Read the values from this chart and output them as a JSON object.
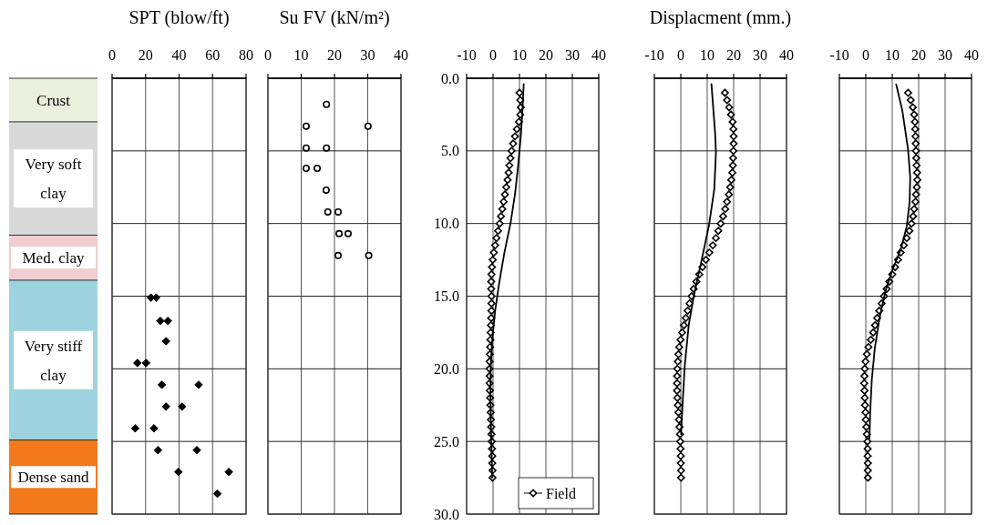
{
  "chart_data": [
    {
      "type": "bar",
      "stacked": true,
      "categories": [
        null
      ],
      "ylim": [
        30,
        0
      ],
      "tick_labels": false,
      "series": [
        {
          "name": "Crust",
          "color": "#ebf0de",
          "values": [
            3.0
          ]
        },
        {
          "name": "Very soft clay",
          "color": "#d9d9d9",
          "values": [
            7.8
          ]
        },
        {
          "name": "Med. clay",
          "color": "#efcdd0",
          "values": [
            3.1
          ]
        },
        {
          "name": "Very stiff clay",
          "color": "#9dd3df",
          "values": [
            11.0
          ]
        },
        {
          "name": "Dense sand",
          "color": "#f27a1c",
          "values": [
            5.1
          ]
        }
      ]
    },
    {
      "type": "scatter",
      "title": "SPT (blow/ft)",
      "xlim": [
        0,
        80
      ],
      "xticks": [
        0,
        20,
        40,
        60,
        80
      ],
      "ylim": [
        30,
        0
      ],
      "yticks": [
        0,
        5,
        10,
        15,
        20,
        25,
        30
      ],
      "tick_labels": "x",
      "grid": true,
      "marker": "diamond",
      "series": [
        {
          "color": "#000000",
          "x": [
            23.2,
            26.3,
            28.8,
            33.3,
            32.2,
            15.1,
            20.3,
            29.7,
            51.7,
            32.2,
            41.8,
            13.8,
            25,
            27.4,
            50.6,
            39.6,
            69.7,
            62.9
          ],
          "values": [
            15.1,
            15.1,
            16.7,
            16.7,
            18.1,
            19.6,
            19.6,
            21.1,
            21.1,
            22.6,
            22.6,
            24.1,
            24.1,
            25.6,
            25.6,
            27.1,
            27.1,
            28.6
          ]
        }
      ]
    },
    {
      "type": "scatter",
      "title": "Su FV (kN/m²)",
      "xlim": [
        0,
        40
      ],
      "xticks": [
        0,
        10,
        20,
        30,
        40
      ],
      "ylim": [
        30,
        0
      ],
      "yticks": [
        0,
        5,
        10,
        15,
        20,
        25,
        30
      ],
      "tick_labels": "x",
      "grid": true,
      "marker": "circle",
      "series": [
        {
          "color": "#000000",
          "x": [
            17.6,
            11.5,
            30.1,
            11.5,
            17.6,
            11.5,
            14.8,
            17.5,
            18.0,
            21.1,
            21.4,
            24.1,
            21.1,
            30.3
          ],
          "values": [
            1.8,
            3.3,
            3.3,
            4.8,
            4.8,
            6.2,
            6.2,
            7.7,
            9.2,
            9.2,
            10.7,
            10.7,
            12.2,
            12.2
          ]
        }
      ]
    },
    {
      "type": "scatter",
      "xlim": [
        -10,
        40
      ],
      "xticks": [
        -10,
        0,
        10,
        20,
        30,
        40
      ],
      "ylim": [
        30,
        0
      ],
      "yticks": [
        {
          "value": 0,
          "label": "0.0"
        },
        {
          "value": 5,
          "label": "5.0"
        },
        {
          "value": 10,
          "label": "10.0"
        },
        {
          "value": 15,
          "label": "15.0"
        },
        {
          "value": 20,
          "label": "20.0"
        },
        {
          "value": 25,
          "label": "25.0"
        },
        {
          "value": 30,
          "label": "30.0"
        }
      ],
      "grid": true,
      "legend": "bottom right",
      "series": [
        {
          "type": "scatter",
          "name": "Field",
          "color": "#000000",
          "marker": "diamond",
          "x": [
            10.0,
            10.3,
            10.5,
            10.3,
            9.8,
            9.0,
            8.3,
            7.6,
            7.0,
            6.6,
            6.2,
            5.9,
            5.5,
            5.0,
            4.5,
            4.0,
            3.5,
            3.0,
            2.5,
            1.9,
            1.3,
            0.8,
            0.3,
            -0.1,
            -0.4,
            -0.6,
            -0.7,
            -0.7,
            -0.6,
            -0.6,
            -0.6,
            -0.7,
            -0.8,
            -0.9,
            -1.0,
            -1.1,
            -1.2,
            -1.3,
            -1.3,
            -1.3,
            -1.3,
            -1.2,
            -1.1,
            -1.0,
            -0.9,
            -0.8,
            -0.7,
            -0.6,
            -0.5,
            -0.4,
            -0.3,
            -0.3,
            -0.2,
            -0.2
          ],
          "values": [
            1.0,
            1.5,
            2.0,
            2.5,
            3.0,
            3.5,
            4.0,
            4.5,
            5.0,
            5.5,
            6.0,
            6.5,
            7.0,
            7.5,
            8.0,
            8.5,
            9.0,
            9.5,
            10.0,
            10.5,
            11.0,
            11.5,
            12.0,
            12.5,
            13.0,
            13.5,
            14.0,
            14.5,
            15.0,
            15.5,
            16.0,
            16.5,
            17.0,
            17.5,
            18.0,
            18.5,
            19.0,
            19.5,
            20.0,
            20.5,
            21.0,
            21.5,
            22.0,
            22.5,
            23.0,
            23.5,
            24.0,
            24.5,
            25.0,
            25.5,
            26.0,
            26.5,
            27.0,
            27.5
          ]
        },
        {
          "type": "line",
          "color": "#000000",
          "marker": "none",
          "line_style": "solid",
          "x": [
            11.6,
            11.2,
            10.5,
            9.5,
            8.3,
            6.6,
            4.3,
            2.4,
            0.8,
            -0.3,
            -0.9,
            -1.0,
            -0.8,
            -0.5,
            -0.3
          ],
          "values": [
            0.4,
            2,
            4,
            6,
            8,
            10,
            12,
            14,
            16,
            18,
            20,
            22,
            24,
            26,
            27.5
          ]
        }
      ]
    },
    {
      "type": "scatter",
      "title": "Displacment (mm.)",
      "xlim": [
        -10,
        40
      ],
      "xticks": [
        -10,
        0,
        10,
        20,
        30,
        40
      ],
      "ylim": [
        30,
        0
      ],
      "yticks": [
        0,
        5,
        10,
        15,
        20,
        25,
        30
      ],
      "tick_labels": "x",
      "grid": true,
      "series": [
        {
          "type": "scatter",
          "color": "#000000",
          "marker": "diamond",
          "x": [
            16.7,
            17.5,
            18.3,
            19.0,
            19.6,
            19.9,
            20.0,
            20.0,
            19.9,
            19.8,
            19.7,
            19.5,
            19.1,
            18.7,
            18.2,
            17.5,
            16.8,
            16.0,
            15.1,
            14.2,
            13.3,
            12.1,
            10.8,
            9.5,
            8.2,
            7.0,
            5.9,
            4.9,
            4.1,
            3.3,
            2.6,
            1.9,
            1.2,
            0.5,
            -0.1,
            -0.6,
            -0.9,
            -1.1,
            -1.3,
            -1.4,
            -1.4,
            -1.4,
            -1.3,
            -1.1,
            -0.9,
            -0.7,
            -0.5,
            -0.3,
            -0.2,
            -0.1,
            0.0,
            0.0,
            0.1,
            0.1
          ],
          "values": [
            1.0,
            1.5,
            2.0,
            2.5,
            3.0,
            3.5,
            4.0,
            4.5,
            5.0,
            5.5,
            6.0,
            6.5,
            7.0,
            7.5,
            8.0,
            8.5,
            9.0,
            9.5,
            10.0,
            10.5,
            11.0,
            11.5,
            12.0,
            12.5,
            13.0,
            13.5,
            14.0,
            14.5,
            15.0,
            15.5,
            16.0,
            16.5,
            17.0,
            17.5,
            18.0,
            18.5,
            19.0,
            19.5,
            20.0,
            20.5,
            21.0,
            21.5,
            22.0,
            22.5,
            23.0,
            23.5,
            24.0,
            24.5,
            25.0,
            25.5,
            26.0,
            26.5,
            27.0,
            27.5
          ]
        },
        {
          "type": "line",
          "color": "#000000",
          "marker": "none",
          "line_style": "solid",
          "x": [
            11.6,
            13.0,
            13.3,
            12.7,
            10.7,
            7.8,
            4.9,
            3.0,
            1.5,
            0.6,
            0.1
          ],
          "values": [
            0.4,
            3.8,
            5.1,
            7.6,
            10.1,
            12.6,
            15.0,
            17.0,
            19.8,
            22.7,
            24.5
          ]
        }
      ]
    },
    {
      "type": "scatter",
      "xlim": [
        -10,
        40
      ],
      "xticks": [
        -10,
        0,
        10,
        20,
        30,
        40
      ],
      "ylim": [
        30,
        0
      ],
      "yticks": [
        0,
        5,
        10,
        15,
        20,
        25,
        30
      ],
      "tick_labels": "x",
      "grid": true,
      "series": [
        {
          "type": "scatter",
          "color": "#000000",
          "marker": "diamond",
          "x": [
            16.0,
            17.0,
            17.8,
            18.3,
            18.6,
            18.7,
            18.8,
            18.9,
            19.0,
            19.1,
            19.2,
            19.4,
            19.5,
            19.3,
            19.0,
            18.8,
            18.3,
            17.9,
            17.3,
            16.5,
            15.5,
            14.4,
            13.2,
            12.2,
            11.1,
            10.0,
            8.9,
            7.9,
            6.9,
            6.0,
            5.1,
            4.3,
            3.5,
            2.8,
            1.9,
            1.0,
            0.4,
            -0.1,
            -0.4,
            -0.5,
            -0.6,
            -0.5,
            -0.4,
            -0.3,
            -0.1,
            0.0,
            0.2,
            0.4,
            0.6,
            0.7,
            0.7,
            0.8,
            0.8,
            0.8
          ],
          "values": [
            1.0,
            1.5,
            2.0,
            2.5,
            3.0,
            3.5,
            4.0,
            4.5,
            5.0,
            5.5,
            6.0,
            6.5,
            7.0,
            7.5,
            8.0,
            8.5,
            9.0,
            9.5,
            10.0,
            10.5,
            11.0,
            11.5,
            12.0,
            12.5,
            13.0,
            13.5,
            14.0,
            14.5,
            15.0,
            15.5,
            16.0,
            16.5,
            17.0,
            17.5,
            18.0,
            18.5,
            19.0,
            19.5,
            20.0,
            20.5,
            21.0,
            21.5,
            22.0,
            22.5,
            23.0,
            23.5,
            24.0,
            24.5,
            25.0,
            25.5,
            26.0,
            26.5,
            27.0,
            27.5
          ]
        },
        {
          "type": "line",
          "color": "#000000",
          "marker": "none",
          "line_style": "solid",
          "x": [
            11.5,
            13.8,
            16.0,
            16.8,
            16.6,
            15.5,
            13.2,
            10.3,
            7.5,
            5.2,
            3.4,
            2.3,
            1.7,
            1.4
          ],
          "values": [
            0.42,
            2.2,
            4.9,
            6.8,
            8.5,
            10.2,
            11.8,
            13.1,
            14.6,
            16.5,
            18.6,
            20.7,
            22.8,
            24.8
          ]
        }
      ]
    }
  ]
}
